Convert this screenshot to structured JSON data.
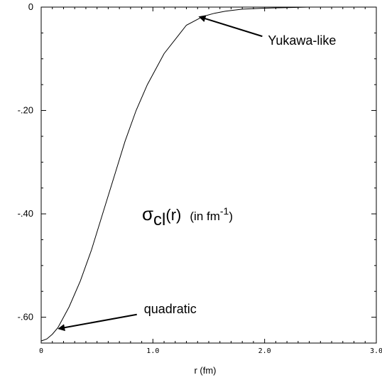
{
  "chart_data": {
    "type": "line",
    "title": "",
    "xlabel": "r  (fm)",
    "ylabel": "",
    "xlim": [
      0,
      3.0
    ],
    "ylim": [
      -0.65,
      0.0
    ],
    "grid": false,
    "x_ticks": [
      {
        "value": 0,
        "label": "0"
      },
      {
        "value": 1.0,
        "label": "1.0"
      },
      {
        "value": 2.0,
        "label": "2.0"
      },
      {
        "value": 3.0,
        "label": "3.0"
      }
    ],
    "y_ticks": [
      {
        "value": 0,
        "label": "0"
      },
      {
        "value": -0.2,
        "label": "-.20"
      },
      {
        "value": -0.4,
        "label": "-.40"
      },
      {
        "value": -0.6,
        "label": "-.60"
      }
    ],
    "series": [
      {
        "x": [
          0.0,
          0.05,
          0.1,
          0.15,
          0.25,
          0.35,
          0.45,
          0.55,
          0.65,
          0.75,
          0.85,
          0.95,
          1.1,
          1.3,
          1.45,
          1.55,
          1.65,
          1.8,
          2.0,
          2.2,
          2.4,
          2.6,
          2.8,
          3.0
        ],
        "y": [
          -0.646,
          -0.642,
          -0.633,
          -0.62,
          -0.58,
          -0.53,
          -0.47,
          -0.4,
          -0.33,
          -0.26,
          -0.2,
          -0.15,
          -0.09,
          -0.035,
          -0.018,
          -0.012,
          -0.008,
          -0.004,
          -0.002,
          -0.001,
          0.0,
          0.0,
          0.0,
          0.0
        ]
      }
    ],
    "annotations": [
      {
        "text": "Yukawa-like",
        "x": 2.03,
        "y": -0.073,
        "arrow_to": [
          1.42,
          -0.019
        ]
      },
      {
        "text": "quadratic",
        "x": 0.92,
        "y": -0.592,
        "arrow_to": [
          0.16,
          -0.622
        ]
      }
    ],
    "formula": {
      "main": "σ",
      "subscript": "cl",
      "arg": "(r)",
      "unit_prefix": "(in fm",
      "exponent": "-1",
      "unit_suffix": ")"
    }
  }
}
